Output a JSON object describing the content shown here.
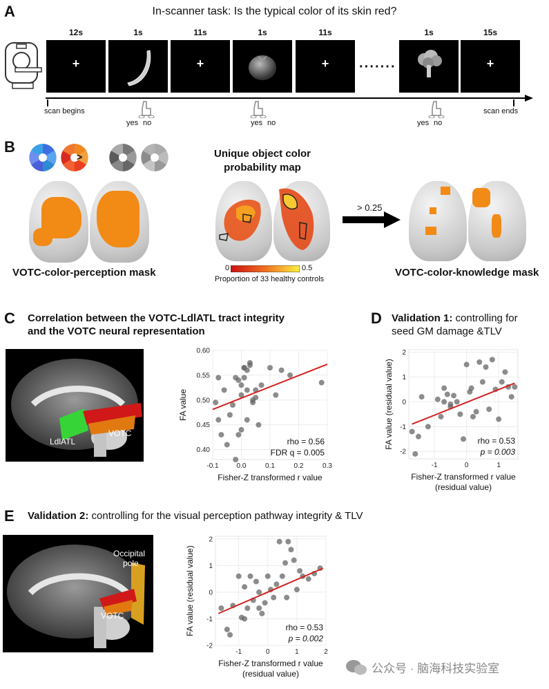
{
  "panelA": {
    "letter": "A",
    "title": "In-scanner task: Is the typical color of its skin red?",
    "durations": [
      "12s",
      "1s",
      "11s",
      "1s",
      "11s",
      "1s",
      "15s"
    ],
    "cross": "+",
    "ellipsis": "·······",
    "scan_begins": "scan begins",
    "scan_ends": "scan ends",
    "yes": "yes",
    "no": "no"
  },
  "panelB": {
    "letter": "B",
    "map_title_line1": "Unique object color",
    "map_title_line2": "probability map",
    "threshold": "> 0.25",
    "wheel_compare": ">",
    "scale_min": "0",
    "scale_max": "0.5",
    "scale_label": "Proportion of 33 healthy controls",
    "perception_mask": "VOTC-color-perception mask",
    "knowledge_mask": "VOTC-color-knowledge mask"
  },
  "panelC": {
    "letter": "C",
    "title_line1": "Correlation between the VOTC-LdlATL tract integrity",
    "title_line2": "and the VOTC neural representation",
    "label_ldlatl": "LdlATL",
    "label_votc": "VOTC",
    "chart_data": {
      "type": "scatter",
      "xlabel": "Fisher-Z transformed r value",
      "ylabel": "FA value",
      "xlim": [
        -0.1,
        0.3
      ],
      "ylim": [
        0.38,
        0.6
      ],
      "xticks": [
        "-0.1",
        "0.0",
        "0.1",
        "0.2",
        "0.3"
      ],
      "yticks": [
        "0.40",
        "0.45",
        "0.50",
        "0.55",
        "0.60"
      ],
      "annotation_rho": "rho = 0.56",
      "annotation_fdr": "FDR q = 0.005",
      "fit_line": [
        [
          -0.1,
          0.481
        ],
        [
          0.3,
          0.572
        ]
      ],
      "x": [
        -0.09,
        -0.08,
        -0.07,
        -0.05,
        -0.04,
        -0.03,
        -0.02,
        -0.01,
        0.0,
        0.01,
        0.02,
        0.03,
        0.04,
        0.05,
        0.06,
        0.07,
        0.1,
        0.12,
        0.14,
        0.17,
        0.02,
        0.01,
        0.0,
        -0.01,
        0.02,
        0.03,
        0.04,
        0.05,
        -0.02,
        0.0,
        -0.08,
        0.28,
        0.01,
        -0.06
      ],
      "y": [
        0.495,
        0.545,
        0.43,
        0.41,
        0.47,
        0.49,
        0.545,
        0.43,
        0.53,
        0.565,
        0.56,
        0.575,
        0.495,
        0.52,
        0.45,
        0.53,
        0.565,
        0.51,
        0.56,
        0.55,
        0.52,
        0.545,
        0.44,
        0.54,
        0.46,
        0.57,
        0.5,
        0.505,
        0.38,
        0.51,
        0.46,
        0.535,
        0.565,
        0.52
      ]
    }
  },
  "panelD": {
    "letter": "D",
    "title_bold": "Validation 1:",
    "title_rest": " controlling for",
    "title_line2": "seed GM damage &TLV",
    "chart_data": {
      "type": "scatter",
      "xlabel_line1": "Fisher-Z transformed r value",
      "xlabel_line2": "(residual value)",
      "ylabel": "FA value (residual value)",
      "xlim": [
        -1.8,
        1.6
      ],
      "ylim": [
        -2.3,
        2.1
      ],
      "xticks": [
        "-1",
        "0",
        "1"
      ],
      "yticks": [
        "-2",
        "-1",
        "0",
        "1",
        "2"
      ],
      "annotation_rho": "rho = 0.53",
      "annotation_p": "p = 0.003",
      "fit_line": [
        [
          -1.7,
          -0.9
        ],
        [
          1.5,
          0.75
        ]
      ],
      "x": [
        -1.7,
        -1.6,
        -1.5,
        -1.4,
        -1.2,
        -0.9,
        -0.8,
        -0.7,
        -0.6,
        -0.5,
        -0.4,
        -0.3,
        -0.2,
        -0.1,
        0.0,
        0.1,
        0.15,
        0.2,
        0.3,
        0.4,
        0.5,
        0.6,
        0.7,
        0.8,
        0.9,
        1.0,
        1.1,
        1.2,
        1.3,
        1.4,
        1.5,
        -0.7,
        -0.5
      ],
      "y": [
        -1.2,
        -2.1,
        -1.4,
        0.2,
        -1.0,
        0.1,
        -0.6,
        0.55,
        0.3,
        -0.2,
        0.25,
        0.0,
        -0.5,
        -1.5,
        1.5,
        0.4,
        0.55,
        -0.6,
        -0.4,
        1.6,
        0.8,
        1.4,
        -0.3,
        1.7,
        0.5,
        -0.7,
        0.8,
        1.2,
        0.6,
        0.2,
        0.6,
        0.0,
        -0.1
      ]
    }
  },
  "panelE": {
    "letter": "E",
    "title_bold": "Validation 2:",
    "title_rest": " controlling for the visual perception pathway integrity & TLV",
    "label_occipital_1": "Occipital",
    "label_occipital_2": "pole",
    "label_votc": "VOTC",
    "chart_data": {
      "type": "scatter",
      "xlabel_line1": "Fisher-Z transformed r value",
      "xlabel_line2": "(residual value)",
      "ylabel": "FA value (residual value)",
      "xlim": [
        -1.8,
        2.0
      ],
      "ylim": [
        -2.0,
        2.1
      ],
      "xticks": [
        "-1",
        "0",
        "1",
        "2"
      ],
      "yticks": [
        "-2",
        "-1",
        "0",
        "1",
        "2"
      ],
      "annotation_rho": "rho = 0.53",
      "annotation_p": "p = 0.002",
      "fit_line": [
        [
          -1.7,
          -0.8
        ],
        [
          1.9,
          0.9
        ]
      ],
      "x": [
        -1.6,
        -1.4,
        -1.3,
        -1.2,
        -1.0,
        -0.9,
        -0.8,
        -0.7,
        -0.6,
        -0.5,
        -0.4,
        -0.3,
        -0.2,
        -0.1,
        0.0,
        0.1,
        0.2,
        0.3,
        0.4,
        0.5,
        0.6,
        0.7,
        0.8,
        0.9,
        1.0,
        1.1,
        1.2,
        1.4,
        1.6,
        1.8,
        -0.8,
        -0.3,
        0.65
      ],
      "y": [
        -0.6,
        -1.4,
        -1.6,
        -0.5,
        0.6,
        -0.95,
        0.2,
        -0.6,
        0.6,
        -0.3,
        0.4,
        -0.6,
        -0.8,
        -0.4,
        0.6,
        0.1,
        -0.2,
        0.3,
        1.9,
        0.6,
        1.1,
        1.9,
        1.6,
        1.2,
        0.1,
        0.8,
        0.6,
        0.5,
        0.7,
        0.9,
        -1.0,
        0.0,
        -0.2
      ]
    }
  },
  "watermark": "公众号 · 脑海科技实验室",
  "colors": {
    "orange": "#f28a16",
    "fit_line": "#d42020",
    "point": "#666666",
    "green": "#37d437",
    "red_tract": "#d01818"
  }
}
